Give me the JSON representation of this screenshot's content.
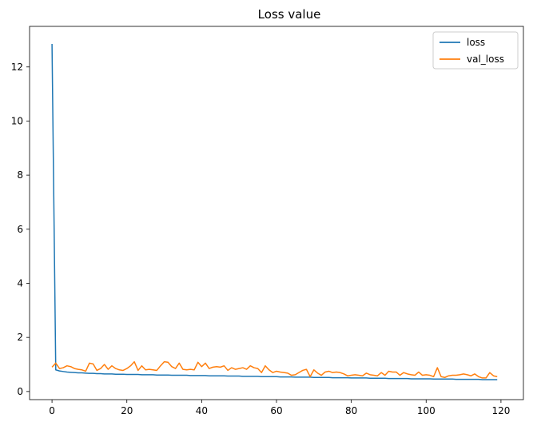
{
  "chart_data": {
    "type": "line",
    "title": "Loss value",
    "xlabel": "",
    "ylabel": "",
    "xlim": [
      -6,
      126
    ],
    "ylim": [
      -0.3,
      13.5
    ],
    "xticks": [
      0,
      20,
      40,
      60,
      80,
      100,
      120
    ],
    "yticks": [
      0,
      2,
      4,
      6,
      8,
      10,
      12
    ],
    "grid": false,
    "legend_position": "top-right",
    "series": [
      {
        "name": "loss",
        "color": "#1f77b4",
        "x": [
          0,
          1,
          2,
          3,
          4,
          5,
          6,
          7,
          8,
          9,
          10,
          11,
          12,
          13,
          14,
          15,
          16,
          17,
          18,
          19,
          20,
          21,
          22,
          23,
          24,
          25,
          26,
          27,
          28,
          29,
          30,
          31,
          32,
          33,
          34,
          35,
          36,
          37,
          38,
          39,
          40,
          41,
          42,
          43,
          44,
          45,
          46,
          47,
          48,
          49,
          50,
          51,
          52,
          53,
          54,
          55,
          56,
          57,
          58,
          59,
          60,
          61,
          62,
          63,
          64,
          65,
          66,
          67,
          68,
          69,
          70,
          71,
          72,
          73,
          74,
          75,
          76,
          77,
          78,
          79,
          80,
          81,
          82,
          83,
          84,
          85,
          86,
          87,
          88,
          89,
          90,
          91,
          92,
          93,
          94,
          95,
          96,
          97,
          98,
          99,
          100,
          101,
          102,
          103,
          104,
          105,
          106,
          107,
          108,
          109,
          110,
          111,
          112,
          113,
          114,
          115,
          116,
          117,
          118,
          119
        ],
        "y": [
          12.85,
          0.8,
          0.76,
          0.74,
          0.72,
          0.71,
          0.7,
          0.69,
          0.69,
          0.68,
          0.67,
          0.67,
          0.66,
          0.66,
          0.65,
          0.65,
          0.65,
          0.64,
          0.64,
          0.64,
          0.63,
          0.63,
          0.63,
          0.63,
          0.62,
          0.62,
          0.62,
          0.62,
          0.61,
          0.61,
          0.61,
          0.61,
          0.6,
          0.6,
          0.6,
          0.6,
          0.6,
          0.59,
          0.59,
          0.59,
          0.59,
          0.59,
          0.58,
          0.58,
          0.58,
          0.58,
          0.58,
          0.57,
          0.57,
          0.57,
          0.57,
          0.56,
          0.56,
          0.56,
          0.56,
          0.56,
          0.55,
          0.55,
          0.55,
          0.55,
          0.55,
          0.54,
          0.54,
          0.54,
          0.54,
          0.53,
          0.53,
          0.53,
          0.53,
          0.53,
          0.52,
          0.52,
          0.52,
          0.52,
          0.52,
          0.51,
          0.51,
          0.51,
          0.51,
          0.51,
          0.5,
          0.5,
          0.5,
          0.5,
          0.5,
          0.49,
          0.49,
          0.49,
          0.49,
          0.49,
          0.48,
          0.48,
          0.48,
          0.48,
          0.48,
          0.48,
          0.47,
          0.47,
          0.47,
          0.47,
          0.47,
          0.47,
          0.46,
          0.46,
          0.46,
          0.46,
          0.46,
          0.46,
          0.45,
          0.45,
          0.45,
          0.45,
          0.45,
          0.45,
          0.45,
          0.44,
          0.44,
          0.44,
          0.44,
          0.44
        ]
      },
      {
        "name": "val_loss",
        "color": "#ff7f0e",
        "x": [
          0,
          1,
          2,
          3,
          4,
          5,
          6,
          7,
          8,
          9,
          10,
          11,
          12,
          13,
          14,
          15,
          16,
          17,
          18,
          19,
          20,
          21,
          22,
          23,
          24,
          25,
          26,
          27,
          28,
          29,
          30,
          31,
          32,
          33,
          34,
          35,
          36,
          37,
          38,
          39,
          40,
          41,
          42,
          43,
          44,
          45,
          46,
          47,
          48,
          49,
          50,
          51,
          52,
          53,
          54,
          55,
          56,
          57,
          58,
          59,
          60,
          61,
          62,
          63,
          64,
          65,
          66,
          67,
          68,
          69,
          70,
          71,
          72,
          73,
          74,
          75,
          76,
          77,
          78,
          79,
          80,
          81,
          82,
          83,
          84,
          85,
          86,
          87,
          88,
          89,
          90,
          91,
          92,
          93,
          94,
          95,
          96,
          97,
          98,
          99,
          100,
          101,
          102,
          103,
          104,
          105,
          106,
          107,
          108,
          109,
          110,
          111,
          112,
          113,
          114,
          115,
          116,
          117,
          118,
          119
        ],
        "y": [
          0.9,
          1.05,
          0.85,
          0.88,
          0.95,
          0.92,
          0.85,
          0.82,
          0.8,
          0.75,
          1.05,
          1.02,
          0.78,
          0.85,
          1.0,
          0.82,
          0.95,
          0.85,
          0.8,
          0.78,
          0.85,
          0.95,
          1.1,
          0.78,
          0.95,
          0.8,
          0.82,
          0.8,
          0.78,
          0.95,
          1.1,
          1.08,
          0.92,
          0.85,
          1.05,
          0.82,
          0.8,
          0.82,
          0.8,
          1.08,
          0.92,
          1.05,
          0.85,
          0.9,
          0.92,
          0.9,
          0.95,
          0.78,
          0.88,
          0.82,
          0.85,
          0.88,
          0.82,
          0.95,
          0.88,
          0.85,
          0.7,
          0.95,
          0.8,
          0.7,
          0.75,
          0.72,
          0.7,
          0.68,
          0.6,
          0.62,
          0.7,
          0.78,
          0.82,
          0.55,
          0.8,
          0.68,
          0.6,
          0.72,
          0.75,
          0.7,
          0.72,
          0.7,
          0.65,
          0.58,
          0.6,
          0.62,
          0.6,
          0.58,
          0.68,
          0.62,
          0.6,
          0.58,
          0.7,
          0.6,
          0.75,
          0.72,
          0.72,
          0.6,
          0.7,
          0.65,
          0.62,
          0.6,
          0.72,
          0.6,
          0.62,
          0.6,
          0.55,
          0.88,
          0.55,
          0.52,
          0.58,
          0.6,
          0.6,
          0.62,
          0.65,
          0.62,
          0.58,
          0.65,
          0.55,
          0.5,
          0.5,
          0.7,
          0.58,
          0.55
        ]
      }
    ]
  }
}
